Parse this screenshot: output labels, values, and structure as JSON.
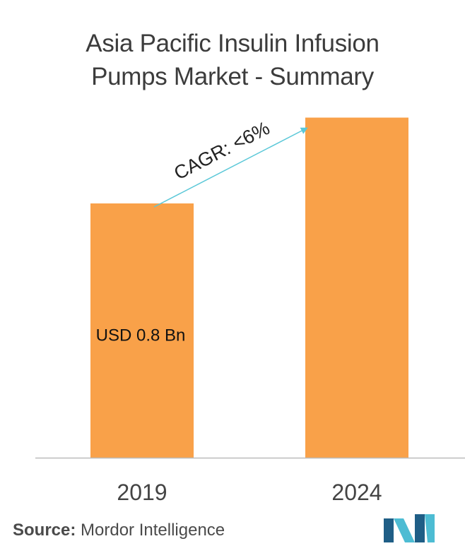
{
  "title_line1": "Asia Pacific Insulin Infusion",
  "title_line2": "Pumps Market - Summary",
  "source_label": "Source:",
  "source_name": "Mordor Intelligence",
  "colors": {
    "bar": "#F9A149",
    "arrow": "#5BC8D8",
    "axis": "#BBBBBB",
    "logo_dark": "#1F5E86",
    "logo_light": "#4DBCD3"
  },
  "chart_data": {
    "type": "bar",
    "title": "Asia Pacific Insulin Infusion Pumps Market - Summary",
    "categories": [
      "2019",
      "2024"
    ],
    "values": [
      0.8,
      1.07
    ],
    "ylim": [
      0,
      1.2
    ],
    "xlabel": "",
    "ylabel": "",
    "grid": false,
    "legend": "none",
    "data_labels": [
      "USD 0.8 Bn",
      ""
    ],
    "annotation": "CAGR: <6%"
  }
}
